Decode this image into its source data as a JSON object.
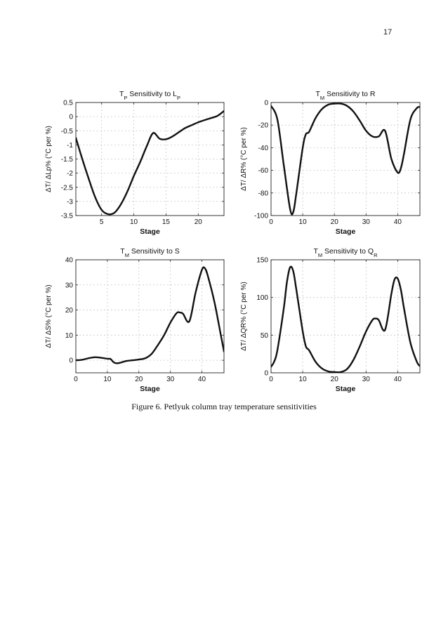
{
  "page": {
    "number": "17"
  },
  "figure": {
    "caption": "Figure 6. Petlyuk column tray temperature sensitivities"
  },
  "colors": {
    "line": "#111111",
    "grid": "#c8c8c8",
    "axis": "#222222"
  },
  "chart_data": [
    {
      "type": "line",
      "title": {
        "main": "T",
        "sub": "P",
        "rest": " Sensitivity to L",
        "rest_sub": "P"
      },
      "xlabel": "Stage",
      "ylabel": "ΔT/ ΔLp% (°C per %)",
      "xlim": [
        1,
        24
      ],
      "ylim": [
        -3.5,
        0.5
      ],
      "xticks": [
        5,
        10,
        15,
        20
      ],
      "yticks": [
        0.5,
        0,
        -0.5,
        -1,
        -1.5,
        -2,
        -2.5,
        -3,
        -3.5
      ],
      "ytick_labels": [
        "0.5",
        "0",
        "-0.5",
        "-1",
        "-1.5",
        "-2",
        "-2.5",
        "-3",
        "-3.5"
      ],
      "grid": true,
      "series": [
        {
          "name": "TP vs LP",
          "x": [
            1,
            2,
            3,
            4,
            5,
            6,
            7,
            8,
            9,
            10,
            11,
            12,
            13,
            14,
            15,
            16,
            17,
            18,
            19,
            20,
            21,
            22,
            23,
            24
          ],
          "y": [
            -0.75,
            -1.5,
            -2.2,
            -2.85,
            -3.3,
            -3.45,
            -3.4,
            -3.1,
            -2.65,
            -2.1,
            -1.6,
            -1.05,
            -0.58,
            -0.78,
            -0.8,
            -0.7,
            -0.55,
            -0.4,
            -0.3,
            -0.2,
            -0.12,
            -0.05,
            0.03,
            0.2
          ]
        }
      ]
    },
    {
      "type": "line",
      "title": {
        "main": "T",
        "sub": "M",
        "rest": " Sensitivity to R",
        "rest_sub": ""
      },
      "xlabel": "Stage",
      "ylabel": "ΔT/ ΔR% (°C per %)",
      "xlim": [
        0,
        47
      ],
      "ylim": [
        -100,
        0
      ],
      "xticks": [
        0,
        10,
        20,
        30,
        40
      ],
      "yticks": [
        0,
        -20,
        -40,
        -60,
        -80,
        -100
      ],
      "ytick_labels": [
        "0",
        "-20",
        "-40",
        "-60",
        "-80",
        "-100"
      ],
      "grid": true,
      "series": [
        {
          "name": "TM vs R",
          "x": [
            0,
            2,
            4,
            6,
            7,
            8,
            10,
            11,
            12,
            14,
            16,
            18,
            20,
            22,
            24,
            26,
            28,
            30,
            32,
            34,
            36,
            38,
            40,
            41,
            42,
            44,
            46,
            47
          ],
          "y": [
            -3,
            -15,
            -55,
            -94,
            -97,
            -80,
            -40,
            -28,
            -26,
            -14,
            -6,
            -2,
            -1,
            -1,
            -3,
            -8,
            -16,
            -25,
            -30,
            -30,
            -25,
            -50,
            -62,
            -58,
            -45,
            -15,
            -5,
            -4
          ]
        }
      ]
    },
    {
      "type": "line",
      "title": {
        "main": "T",
        "sub": "M",
        "rest": " Sensitivity to S",
        "rest_sub": ""
      },
      "xlabel": "Stage",
      "ylabel": "ΔT/ ΔS% (°C per %)",
      "xlim": [
        0,
        47
      ],
      "ylim": [
        -5,
        40
      ],
      "xticks": [
        0,
        10,
        20,
        30,
        40
      ],
      "yticks": [
        40,
        30,
        20,
        10,
        0
      ],
      "ytick_labels": [
        "40",
        "30",
        "20",
        "10",
        "0"
      ],
      "grid": true,
      "series": [
        {
          "name": "TM vs S",
          "x": [
            0,
            2,
            4,
            6,
            8,
            10,
            11,
            12,
            13,
            14,
            16,
            18,
            20,
            22,
            24,
            26,
            28,
            30,
            32,
            33,
            34,
            36,
            38,
            40,
            41,
            42,
            44,
            46,
            47
          ],
          "y": [
            0,
            0.2,
            0.8,
            1.2,
            1.0,
            0.6,
            0.5,
            -0.8,
            -1.2,
            -1.0,
            -0.3,
            0,
            0.3,
            0.8,
            2.5,
            6,
            10,
            15,
            18.8,
            19,
            18.5,
            15.5,
            27,
            36,
            36.5,
            33,
            23,
            10,
            3.5
          ]
        }
      ]
    },
    {
      "type": "line",
      "title": {
        "main": "T",
        "sub": "M",
        "rest": " Sensitivity to Q",
        "rest_sub": "R"
      },
      "xlabel": "Stage",
      "ylabel": "ΔT/ ΔQR% (°C per %)",
      "xlim": [
        0,
        47
      ],
      "ylim": [
        0,
        150
      ],
      "xticks": [
        0,
        10,
        20,
        30,
        40
      ],
      "yticks": [
        150,
        100,
        50,
        0
      ],
      "ytick_labels": [
        "150",
        "100",
        "50",
        "0"
      ],
      "grid": true,
      "series": [
        {
          "name": "TM vs QR",
          "x": [
            0,
            1,
            2,
            4,
            5,
            6,
            7,
            8,
            10,
            11,
            12,
            14,
            16,
            18,
            20,
            22,
            24,
            26,
            28,
            30,
            32,
            33,
            34,
            36,
            38,
            39,
            40,
            41,
            42,
            44,
            46,
            47
          ],
          "y": [
            8,
            15,
            30,
            85,
            120,
            140,
            135,
            110,
            55,
            35,
            30,
            15,
            6,
            2,
            1,
            1,
            5,
            17,
            35,
            55,
            70,
            72,
            70,
            57,
            105,
            124,
            125,
            110,
            85,
            40,
            15,
            9
          ]
        }
      ]
    }
  ]
}
